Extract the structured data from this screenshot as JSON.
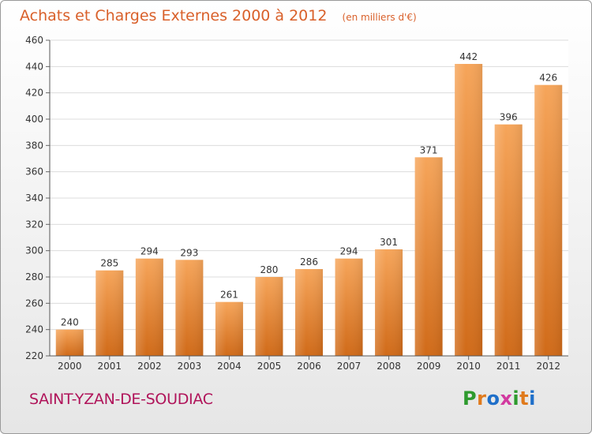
{
  "chart_data": {
    "type": "bar",
    "title": "Achats et Charges Externes 2000 à 2012",
    "unit_note": "(en milliers d'€)",
    "categories": [
      "2000",
      "2001",
      "2002",
      "2003",
      "2004",
      "2005",
      "2006",
      "2007",
      "2008",
      "2009",
      "2010",
      "2011",
      "2012"
    ],
    "values": [
      240,
      285,
      294,
      293,
      261,
      280,
      286,
      294,
      301,
      371,
      442,
      396,
      426
    ],
    "ylim": [
      220,
      460
    ],
    "yticks": [
      220,
      240,
      260,
      280,
      300,
      320,
      340,
      360,
      380,
      400,
      420,
      440,
      460
    ],
    "grid": true,
    "bar_color": "#f3953f",
    "xlabel": "",
    "ylabel": ""
  },
  "place": "SAINT-YZAN-DE-SOUDIAC",
  "logo": {
    "text": "Proxiti",
    "letter_colors": [
      "#2e9a2e",
      "#e07a1c",
      "#1f6fc9",
      "#d23aa0",
      "#2e9a2e",
      "#e07a1c",
      "#1f6fc9"
    ]
  }
}
